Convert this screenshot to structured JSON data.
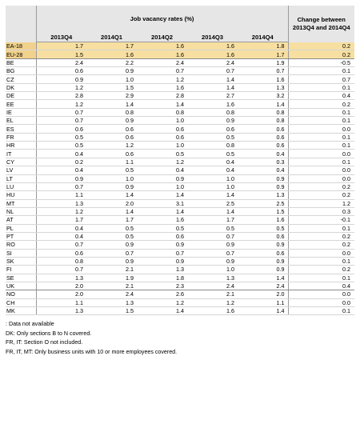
{
  "header": {
    "group_title": "Job vacancy rates (%)",
    "change_title_line1": "Change between",
    "change_title_line2": "2013Q4 and 2014Q4",
    "quarters": [
      "2013Q4",
      "2014Q1",
      "2014Q2",
      "2014Q3",
      "2014Q4"
    ]
  },
  "rows": [
    {
      "code": "EA-18",
      "values": [
        "1.7",
        "1.7",
        "1.6",
        "1.6",
        "1.8"
      ],
      "change": "0.2"
    },
    {
      "code": "EU-28",
      "values": [
        "1.5",
        "1.6",
        "1.6",
        "1.6",
        "1.7"
      ],
      "change": "0.2"
    },
    {
      "code": "BE",
      "values": [
        "2.4",
        "2.2",
        "2.4",
        "2.4",
        "1.9"
      ],
      "change": "-0.5"
    },
    {
      "code": "BG",
      "values": [
        "0.6",
        "0.9",
        "0.7",
        "0.7",
        "0.7"
      ],
      "change": "0.1"
    },
    {
      "code": "CZ",
      "values": [
        "0.9",
        "1.0",
        "1.2",
        "1.4",
        "1.6"
      ],
      "change": "0.7"
    },
    {
      "code": "DK",
      "values": [
        "1.2",
        "1.5",
        "1.6",
        "1.4",
        "1.3"
      ],
      "change": "0.1"
    },
    {
      "code": "DE",
      "values": [
        "2.8",
        "2.9",
        "2.8",
        "2.7",
        "3.2"
      ],
      "change": "0.4"
    },
    {
      "code": "EE",
      "values": [
        "1.2",
        "1.4",
        "1.4",
        "1.6",
        "1.4"
      ],
      "change": "0.2"
    },
    {
      "code": "IE",
      "values": [
        "0.7",
        "0.8",
        "0.8",
        "0.8",
        "0.8"
      ],
      "change": "0.1"
    },
    {
      "code": "EL",
      "values": [
        "0.7",
        "0.9",
        "1.0",
        "0.9",
        "0.8"
      ],
      "change": "0.1"
    },
    {
      "code": "ES",
      "values": [
        "0.6",
        "0.6",
        "0.6",
        "0.6",
        "0.6"
      ],
      "change": "0.0"
    },
    {
      "code": "FR",
      "values": [
        "0.5",
        "0.6",
        "0.6",
        "0.5",
        "0.6"
      ],
      "change": "0.1"
    },
    {
      "code": "HR",
      "values": [
        "0.5",
        "1.2",
        "1.0",
        "0.8",
        "0.6"
      ],
      "change": "0.1"
    },
    {
      "code": "IT",
      "values": [
        "0.4",
        "0.6",
        "0.5",
        "0.5",
        "0.4"
      ],
      "change": "0.0"
    },
    {
      "code": "CY",
      "values": [
        "0.2",
        "1.1",
        "1.2",
        "0.4",
        "0.3"
      ],
      "change": "0.1"
    },
    {
      "code": "LV",
      "values": [
        "0.4",
        "0.5",
        "0.4",
        "0.4",
        "0.4"
      ],
      "change": "0.0"
    },
    {
      "code": "LT",
      "values": [
        "0.9",
        "1.0",
        "0.9",
        "1.0",
        "0.9"
      ],
      "change": "0.0"
    },
    {
      "code": "LU",
      "values": [
        "0.7",
        "0.9",
        "1.0",
        "1.0",
        "0.9"
      ],
      "change": "0.2"
    },
    {
      "code": "HU",
      "values": [
        "1.1",
        "1.4",
        "1.4",
        "1.4",
        "1.3"
      ],
      "change": "0.2"
    },
    {
      "code": "MT",
      "values": [
        "1.3",
        "2.0",
        "3.1",
        "2.5",
        "2.5"
      ],
      "change": "1.2"
    },
    {
      "code": "NL",
      "values": [
        "1.2",
        "1.4",
        "1.4",
        "1.4",
        "1.5"
      ],
      "change": "0.3"
    },
    {
      "code": "AT",
      "values": [
        "1.7",
        "1.7",
        "1.6",
        "1.7",
        "1.6"
      ],
      "change": "-0.1"
    },
    {
      "code": "PL",
      "values": [
        "0.4",
        "0.5",
        "0.5",
        "0.5",
        "0.5"
      ],
      "change": "0.1"
    },
    {
      "code": "PT",
      "values": [
        "0.4",
        "0.5",
        "0.6",
        "0.7",
        "0.6"
      ],
      "change": "0.2"
    },
    {
      "code": "RO",
      "values": [
        "0.7",
        "0.9",
        "0.9",
        "0.9",
        "0.9"
      ],
      "change": "0.2"
    },
    {
      "code": "SI",
      "values": [
        "0.6",
        "0.7",
        "0.7",
        "0.7",
        "0.6"
      ],
      "change": "0.0"
    },
    {
      "code": "SK",
      "values": [
        "0.8",
        "0.9",
        "0.9",
        "0.9",
        "0.9"
      ],
      "change": "0.1"
    },
    {
      "code": "FI",
      "values": [
        "0.7",
        "2.1",
        "1.3",
        "1.0",
        "0.9"
      ],
      "change": "0.2"
    },
    {
      "code": "SE",
      "values": [
        "1.3",
        "1.9",
        "1.8",
        "1.3",
        "1.4"
      ],
      "change": "0.1"
    },
    {
      "code": "UK",
      "values": [
        "2.0",
        "2.1",
        "2.3",
        "2.4",
        "2.4"
      ],
      "change": "0.4"
    },
    {
      "code": "NO",
      "values": [
        "2.0",
        "2.4",
        "2.6",
        "2.1",
        "2.0"
      ],
      "change": "0.0"
    },
    {
      "code": "CH",
      "values": [
        "1.1",
        "1.3",
        "1.2",
        "1.2",
        "1.1"
      ],
      "change": "0.0"
    },
    {
      "code": "MK",
      "values": [
        "1.3",
        "1.5",
        "1.4",
        "1.6",
        "1.4"
      ],
      "change": "0.1"
    }
  ],
  "notes": [
    ": Data not available",
    "DK: Only sections B to N covered.",
    "FR, IT: Section O not included.",
    "FR, IT, MT: Only business units with 10 or more employees covered."
  ]
}
